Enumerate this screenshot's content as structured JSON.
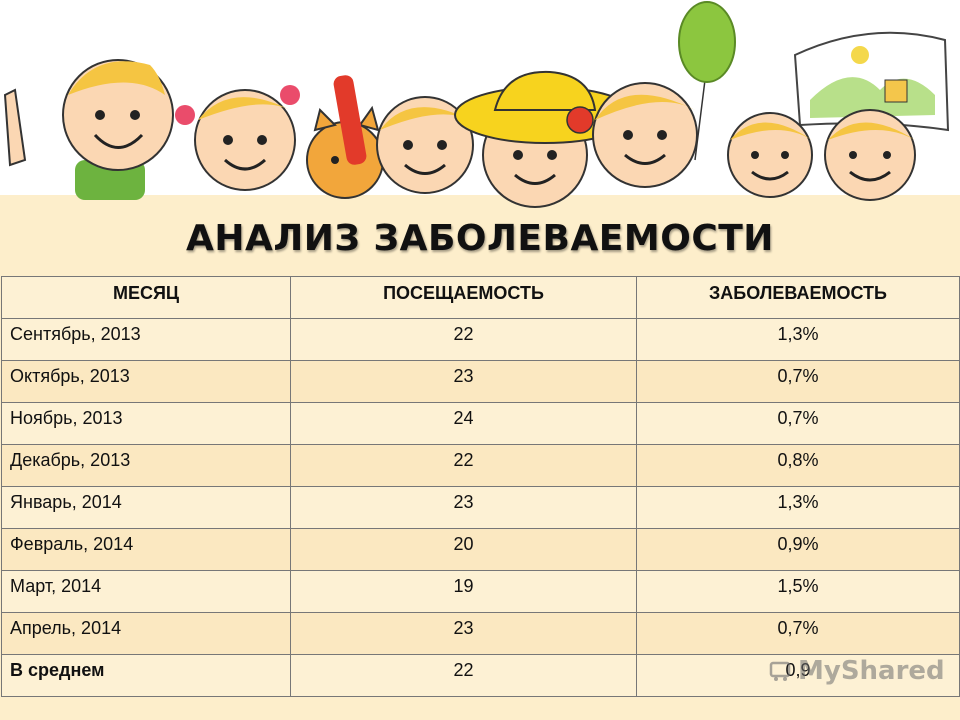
{
  "page_title": "АНАЛИЗ ЗАБОЛЕВАЕМОСТИ",
  "table": {
    "headers": [
      "МЕСЯЦ",
      "ПОСЕЩАЕМОСТЬ",
      "ЗАБОЛЕВАЕМОСТЬ"
    ],
    "rows": [
      [
        "Сентябрь, 2013",
        "22",
        "1,3%"
      ],
      [
        "Октябрь, 2013",
        "23",
        "0,7%"
      ],
      [
        "Ноябрь, 2013",
        "24",
        "0,7%"
      ],
      [
        "Декабрь, 2013",
        "22",
        "0,8%"
      ],
      [
        "Январь, 2014",
        "23",
        "1,3%"
      ],
      [
        "Февраль, 2014",
        "20",
        "0,9%"
      ],
      [
        "Март, 2014",
        "19",
        "1,5%"
      ],
      [
        "Апрель, 2014",
        "23",
        "0,7%"
      ],
      [
        "В среднем",
        "22",
        "0,9"
      ]
    ]
  },
  "watermark": "MyShared",
  "colors": {
    "background": "#fdeecb",
    "balloon": "#8cc63f",
    "hat": "#f7d31e"
  }
}
